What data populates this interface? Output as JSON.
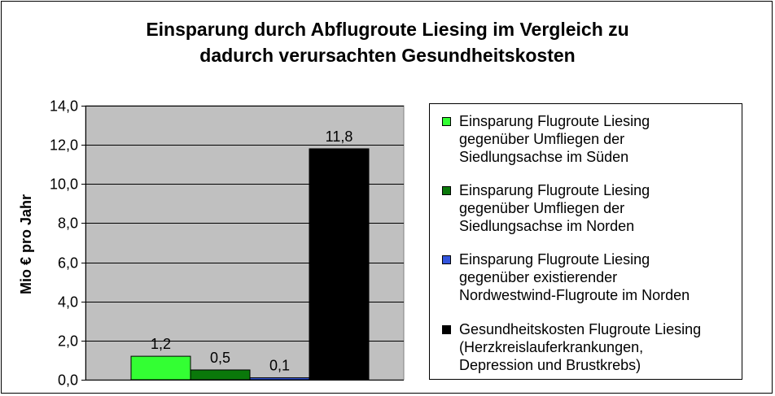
{
  "chart_data": {
    "type": "bar",
    "title_lines": [
      "Einsparung durch Abflugroute Liesing im Vergleich zu",
      "dadurch verursachten Gesundheitskosten"
    ],
    "ylabel": "Mio € pro Jahr",
    "xlabel": "",
    "ylim": [
      0,
      14
    ],
    "y_ticks": [
      "0,0",
      "2,0",
      "4,0",
      "6,0",
      "8,0",
      "10,0",
      "12,0",
      "14,0"
    ],
    "grid": true,
    "legend_position": "right",
    "plot_background": "#c0c0c0",
    "series": [
      {
        "name_lines": [
          "Einsparung Flugroute Liesing",
          "gegenüber Umfliegen der",
          "Siedlungsachse im Süden"
        ],
        "value": 1.2,
        "label": "1,2",
        "color": "#33ff33"
      },
      {
        "name_lines": [
          "Einsparung Flugroute Liesing",
          "gegenüber Umfliegen der",
          "Siedlungsachse im Norden"
        ],
        "value": 0.5,
        "label": "0,5",
        "color": "#0a780a"
      },
      {
        "name_lines": [
          "Einsparung Flugroute Liesing",
          "gegenüber existierender",
          "Nordwestwind-Flugroute im Norden"
        ],
        "value": 0.1,
        "label": "0,1",
        "color": "#3355dd"
      },
      {
        "name_lines": [
          "Gesundheitskosten Flugroute Liesing",
          "(Herzkreislauferkrankungen,",
          "Depression und Brustkrebs)"
        ],
        "value": 11.8,
        "label": "11,8",
        "color": "#000000"
      }
    ]
  }
}
